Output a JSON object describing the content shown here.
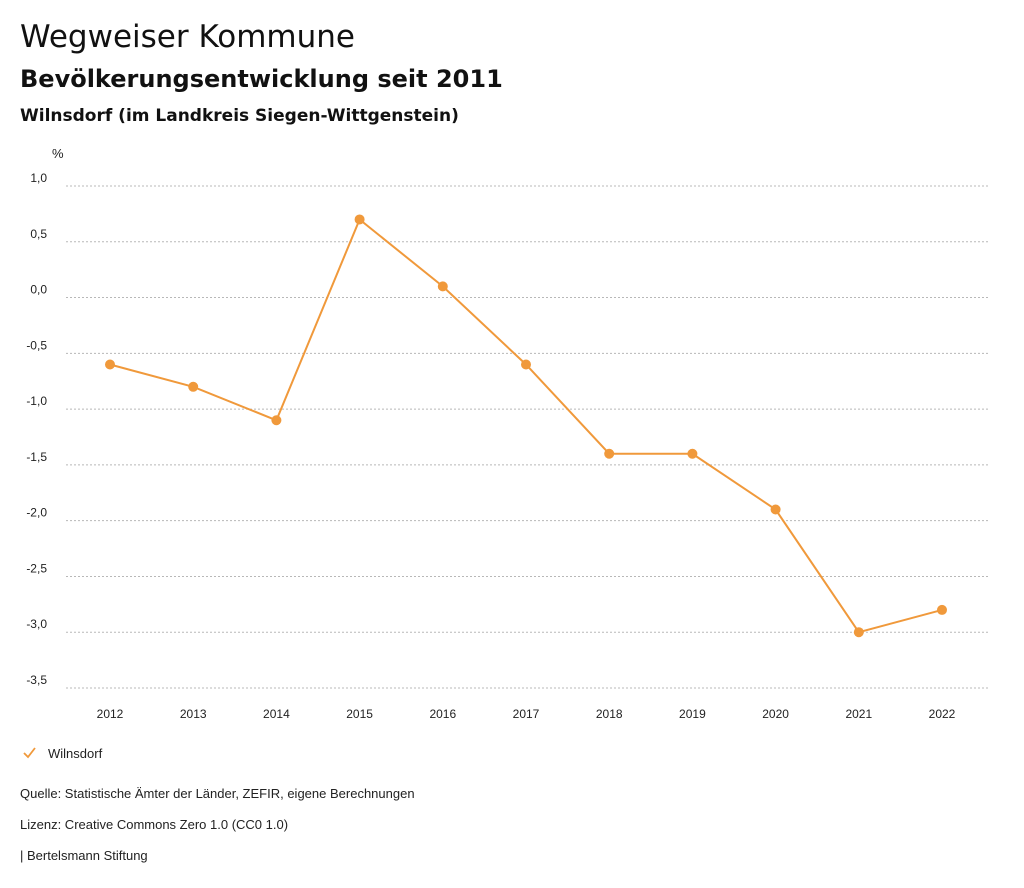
{
  "header": {
    "title": "Wegweiser Kommune",
    "subtitle": "Bevölkerungsentwicklung seit 2011",
    "region": "Wilnsdorf (im Landkreis Siegen-Wittgenstein)"
  },
  "chart_data": {
    "type": "line",
    "ylabel": "%",
    "xlabel": "",
    "ylim": [
      -3.5,
      1.0
    ],
    "yticks": [
      "1,0",
      "0,5",
      "0,0",
      "-0,5",
      "-1,0",
      "-1,5",
      "-2,0",
      "-2,5",
      "-3,0",
      "-3,5"
    ],
    "ytick_values": [
      1.0,
      0.5,
      0.0,
      -0.5,
      -1.0,
      -1.5,
      -2.0,
      -2.5,
      -3.0,
      -3.5
    ],
    "categories": [
      "2012",
      "2013",
      "2014",
      "2015",
      "2016",
      "2017",
      "2018",
      "2019",
      "2020",
      "2021",
      "2022"
    ],
    "series": [
      {
        "name": "Wilnsdorf",
        "values": [
          -0.6,
          -0.8,
          -1.1,
          0.7,
          0.1,
          -0.6,
          -1.4,
          -1.4,
          -1.9,
          -3.0,
          -2.8
        ]
      }
    ],
    "grid": true,
    "legend_position": "bottom-left"
  },
  "legend": {
    "label": "Wilnsdorf",
    "color": "#f0993b"
  },
  "footer": {
    "source": "Quelle: Statistische Ämter der Länder, ZEFIR, eigene Berechnungen",
    "license": "Lizenz: Creative Commons Zero 1.0 (CC0 1.0)",
    "publisher": "| Bertelsmann Stiftung"
  },
  "colors": {
    "series": "#f0993b",
    "grid": "#b8b8b8",
    "axis_text": "#222222"
  }
}
